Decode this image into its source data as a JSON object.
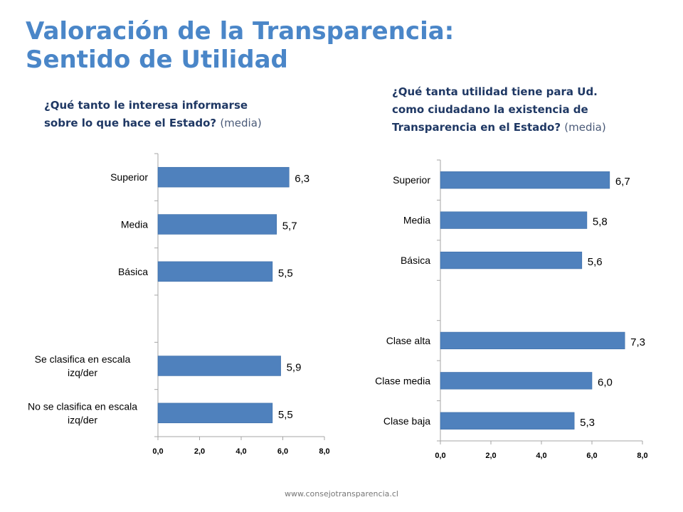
{
  "title": {
    "line1": "Valoración de la Transparencia:",
    "line2": "Sentido de Utilidad"
  },
  "colors": {
    "title": "#4a86c8",
    "bar": "#4f81bd",
    "bar_border": "#3d6ea8",
    "axis": "#a6a6a6"
  },
  "left": {
    "question": "¿Qué tanto le interesa informarse sobre lo que hace el Estado?",
    "question_suffix": "(media)"
  },
  "right": {
    "question": "¿Qué tanta utilidad tiene para Ud. como ciudadano la existencia de Transparencia en el Estado?",
    "question_suffix": "(media)"
  },
  "footer": "www.consejotransparencia.cl",
  "chart_data": [
    {
      "type": "bar",
      "orientation": "horizontal",
      "categories": [
        "Superior",
        "Media",
        "Básica",
        "",
        "Se clasifica en escala izq/der",
        "No se clasifica en escala izq/der"
      ],
      "values": [
        6.3,
        5.7,
        5.5,
        null,
        5.9,
        5.5
      ],
      "value_labels": [
        "6,3",
        "5,7",
        "5,5",
        "",
        "5,9",
        "5,5"
      ],
      "xlim": [
        0,
        8
      ],
      "xticks": [
        "0,0",
        "2,0",
        "4,0",
        "6,0",
        "8,0"
      ],
      "grid": false
    },
    {
      "type": "bar",
      "orientation": "horizontal",
      "categories": [
        "Superior",
        "Media",
        "Básica",
        "",
        "Clase alta",
        "Clase media",
        "Clase baja"
      ],
      "values": [
        6.7,
        5.8,
        5.6,
        null,
        7.3,
        6.0,
        5.3
      ],
      "value_labels": [
        "6,7",
        "5,8",
        "5,6",
        "",
        "7,3",
        "6,0",
        "5,3"
      ],
      "xlim": [
        0,
        8
      ],
      "xticks": [
        "0,0",
        "2,0",
        "4,0",
        "6,0",
        "8,0"
      ],
      "grid": false
    }
  ]
}
